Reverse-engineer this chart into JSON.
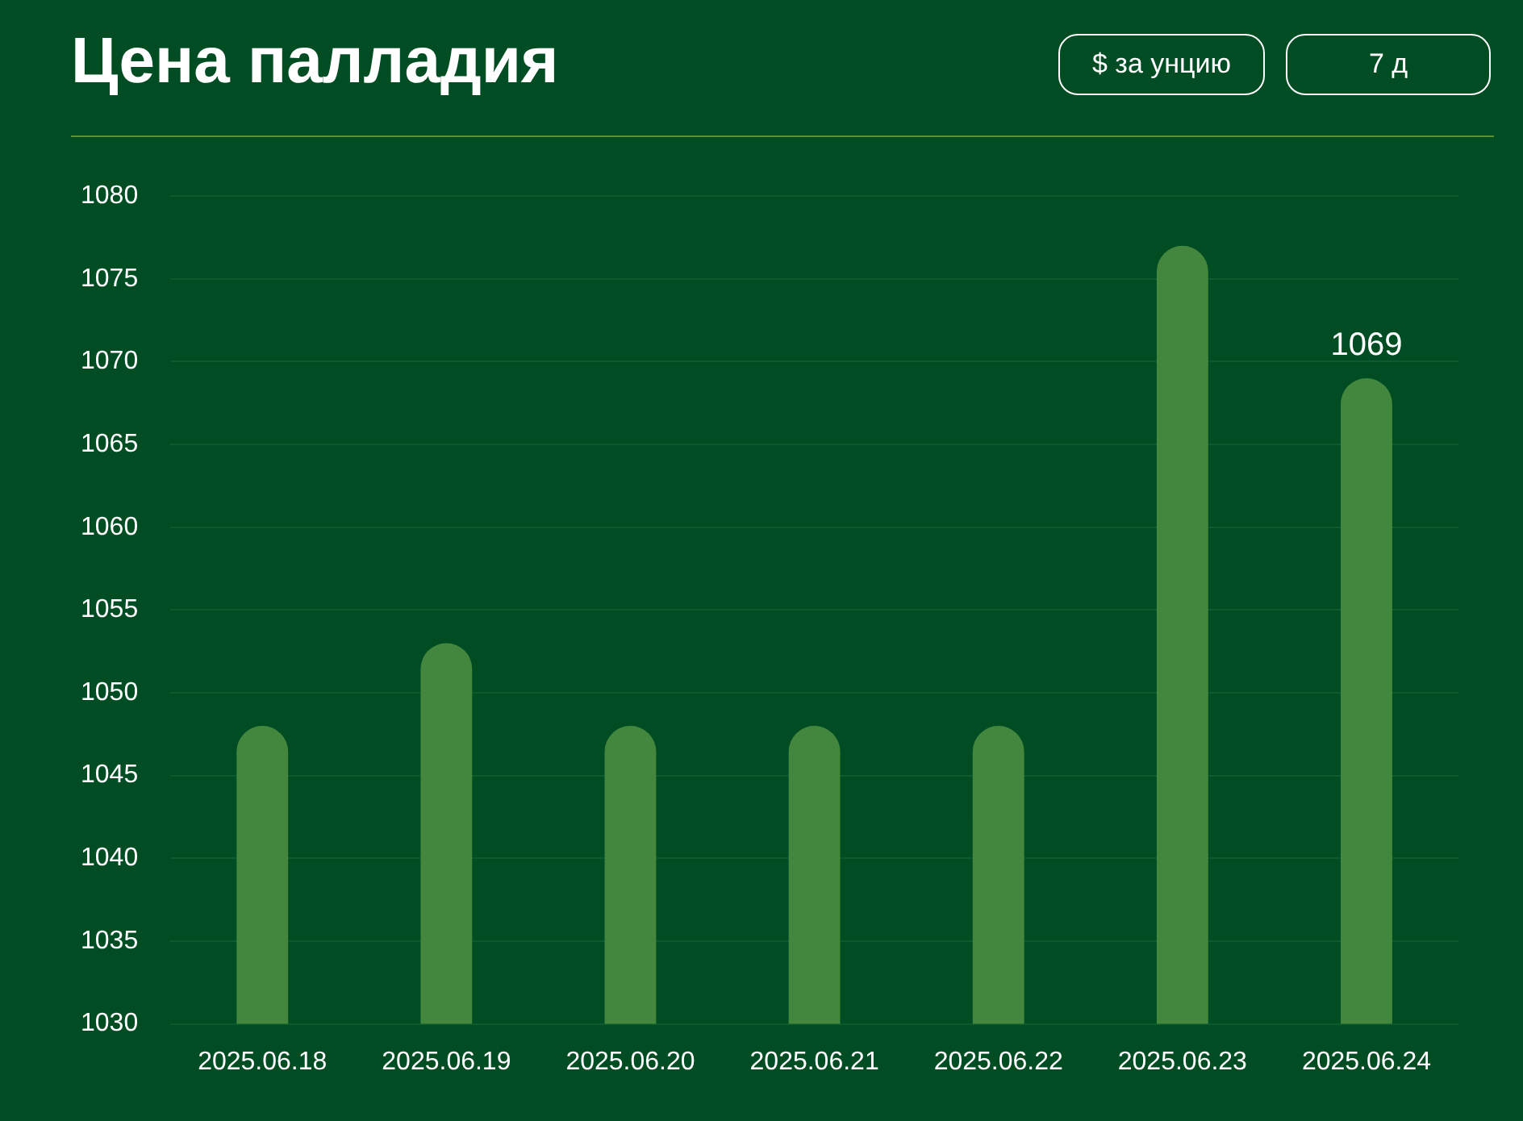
{
  "chart_data": {
    "type": "bar",
    "title": "Цена палладия",
    "annotations": [
      "$ за унцию",
      "7 д"
    ],
    "categories": [
      "2025.06.18",
      "2025.06.19",
      "2025.06.20",
      "2025.06.21",
      "2025.06.22",
      "2025.06.23",
      "2025.06.24"
    ],
    "values": [
      1048,
      1053,
      1048,
      1048,
      1048,
      1077,
      1069
    ],
    "value_labels": [
      null,
      null,
      null,
      null,
      null,
      null,
      "1069"
    ],
    "color": "#43873f",
    "ylim": [
      1030,
      1080
    ],
    "yticks": [
      1030,
      1035,
      1040,
      1045,
      1050,
      1055,
      1060,
      1065,
      1070,
      1075,
      1080
    ],
    "grid": "y",
    "legend": false
  }
}
